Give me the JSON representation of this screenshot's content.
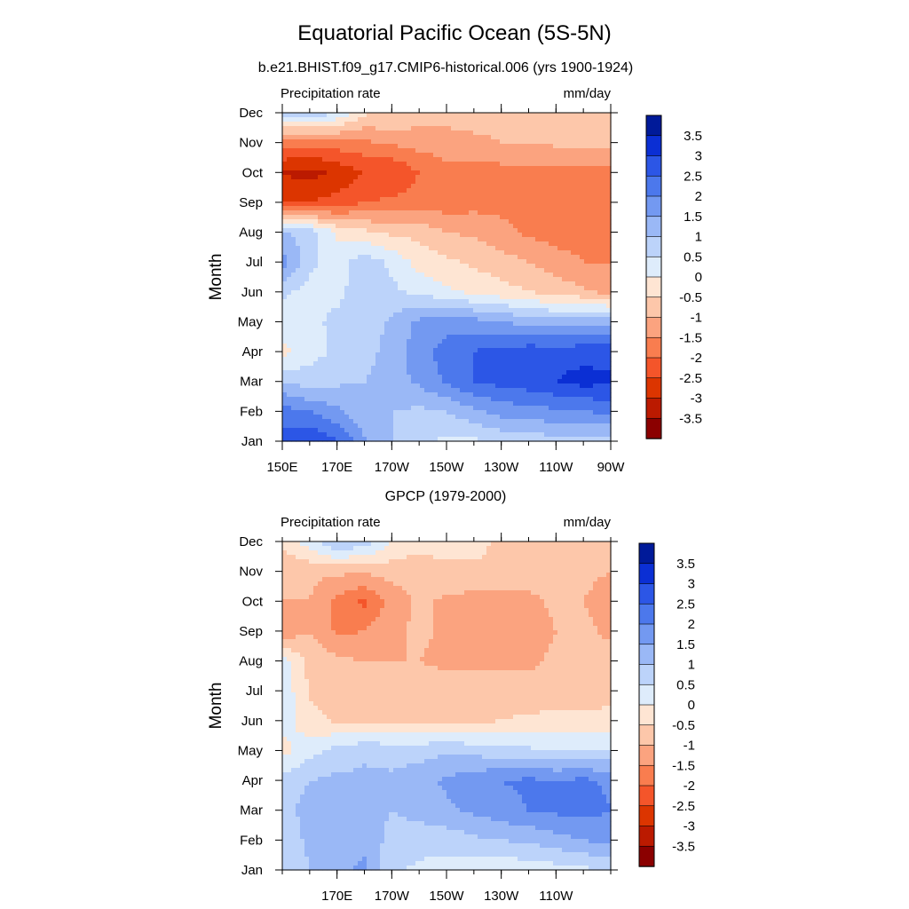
{
  "figure": {
    "title": "Equatorial Pacific Ocean (5S-5N)"
  },
  "colorbar": {
    "labels": [
      "3.5",
      "3",
      "2.5",
      "2",
      "1.5",
      "1",
      "0.5",
      "0",
      "-0.5",
      "-1",
      "-1.5",
      "-2",
      "-2.5",
      "-3",
      "-3.5"
    ],
    "colors": [
      "#8b0000",
      "#bb1a00",
      "#dc3500",
      "#f4552a",
      "#f97d4f",
      "#fba37f",
      "#fdc7aa",
      "#fee5d3",
      "#deecfb",
      "#bcd3fa",
      "#9ab8f6",
      "#7399f1",
      "#4c78ec",
      "#2c56e6",
      "#0b2fd4",
      "#001a99"
    ]
  },
  "chart_data": [
    {
      "type": "heatmap",
      "title": "b.e21.BHIST.f09_g17.CMIP6-historical.006 (yrs 1900-1924)",
      "left_label": "Precipitation rate",
      "right_label": "mm/day",
      "ylabel": "Month",
      "xlabel": "",
      "x_values": [
        150,
        160,
        170,
        180,
        190,
        200,
        210,
        220,
        230,
        240,
        250,
        260,
        270
      ],
      "x_tick_values": [
        150,
        170,
        190,
        210,
        230,
        250,
        270
      ],
      "x_tick_labels": [
        "150E",
        "170E",
        "170W",
        "150W",
        "130W",
        "110W",
        "90W"
      ],
      "xlim": [
        150,
        270
      ],
      "y_tick_labels": [
        "Jan",
        "Feb",
        "Mar",
        "Apr",
        "May",
        "Jun",
        "Jul",
        "Aug",
        "Sep",
        "Oct",
        "Nov",
        "Dec"
      ],
      "levels": [
        -3.5,
        -3,
        -2.5,
        -2,
        -1.5,
        -1,
        -0.5,
        0,
        0.5,
        1,
        1.5,
        2,
        2.5,
        3,
        3.5
      ],
      "z": [
        [
          2.7,
          3.0,
          2.6,
          1.6,
          1.0,
          0.6,
          0.4,
          0.4,
          0.6,
          0.7,
          0.8,
          0.8,
          0.8
        ],
        [
          2.2,
          2.0,
          1.6,
          1.1,
          1.0,
          0.9,
          1.0,
          1.4,
          1.7,
          1.8,
          1.9,
          2.0,
          2.1
        ],
        [
          1.0,
          0.7,
          0.9,
          1.0,
          1.3,
          1.6,
          2.1,
          2.5,
          2.7,
          2.8,
          3.0,
          3.2,
          3.1
        ],
        [
          -0.2,
          0.3,
          0.6,
          0.8,
          1.2,
          1.8,
          2.2,
          2.5,
          2.7,
          2.8,
          2.8,
          2.8,
          2.8
        ],
        [
          0.3,
          0.4,
          0.6,
          0.7,
          1.1,
          1.6,
          1.8,
          1.7,
          1.5,
          1.3,
          1.2,
          1.3,
          1.3
        ],
        [
          0.6,
          0.3,
          0.4,
          0.7,
          0.6,
          0.4,
          0.1,
          -0.1,
          -0.3,
          -0.5,
          -0.7,
          -0.9,
          -1.2
        ],
        [
          1.8,
          0.6,
          0.3,
          0.8,
          0.4,
          -0.2,
          -0.4,
          -0.6,
          -0.8,
          -1.0,
          -1.3,
          -1.5,
          -1.5
        ],
        [
          1.0,
          0.8,
          -0.1,
          -0.4,
          -0.6,
          -0.7,
          -1.0,
          -1.1,
          -1.3,
          -1.6,
          -1.7,
          -1.7,
          -1.7
        ],
        [
          -2.6,
          -2.5,
          -2.3,
          -2.0,
          -1.9,
          -1.8,
          -1.8,
          -1.7,
          -1.7,
          -1.7,
          -1.7,
          -1.7,
          -1.7
        ],
        [
          -3.0,
          -3.2,
          -2.9,
          -2.5,
          -2.5,
          -2.0,
          -1.7,
          -1.7,
          -1.7,
          -1.7,
          -1.7,
          -1.7,
          -1.6
        ],
        [
          -1.8,
          -1.8,
          -1.7,
          -1.6,
          -1.4,
          -1.3,
          -1.2,
          -1.1,
          -1.0,
          -1.0,
          -0.9,
          -0.9,
          -0.9
        ],
        [
          0.7,
          0.9,
          0.5,
          -0.4,
          -0.5,
          -0.7,
          -0.8,
          -0.8,
          -0.8,
          -0.7,
          -0.7,
          -0.6,
          -0.6
        ]
      ]
    },
    {
      "type": "heatmap",
      "title": "GPCP (1979-2000)",
      "left_label": "Precipitation rate",
      "right_label": "mm/day",
      "ylabel": "Month",
      "xlabel": "",
      "x_values": [
        150,
        160,
        170,
        180,
        190,
        200,
        210,
        220,
        230,
        240,
        250,
        260,
        270
      ],
      "x_tick_values": [
        170,
        190,
        210,
        230,
        250
      ],
      "x_tick_labels": [
        "170E",
        "170W",
        "150W",
        "130W",
        "110W"
      ],
      "xlim": [
        150,
        270
      ],
      "y_tick_labels": [
        "Jan",
        "Feb",
        "Mar",
        "Apr",
        "May",
        "Jun",
        "Jul",
        "Aug",
        "Sep",
        "Oct",
        "Nov",
        "Dec"
      ],
      "levels": [
        -3.5,
        -3,
        -2.5,
        -2,
        -1.5,
        -1,
        -0.5,
        0,
        0.5,
        1,
        1.5,
        2,
        2.5,
        3,
        3.5
      ],
      "z": [
        [
          0.6,
          1.0,
          1.4,
          1.6,
          0.6,
          0.4,
          0.3,
          0.2,
          0.1,
          0.2,
          0.3,
          0.4,
          0.5
        ],
        [
          0.7,
          1.1,
          1.3,
          1.4,
          0.8,
          0.7,
          0.7,
          0.9,
          1.0,
          1.1,
          1.3,
          1.5,
          1.7
        ],
        [
          0.8,
          1.2,
          1.4,
          1.3,
          1.0,
          1.2,
          1.4,
          1.6,
          1.8,
          2.0,
          2.1,
          2.2,
          2.0
        ],
        [
          0.7,
          1.0,
          1.1,
          1.1,
          1.1,
          1.3,
          1.6,
          1.8,
          2.0,
          2.1,
          2.0,
          2.1,
          1.9
        ],
        [
          -0.2,
          0.3,
          0.7,
          0.9,
          0.8,
          0.8,
          0.9,
          0.8,
          0.7,
          0.6,
          0.5,
          0.5,
          0.5
        ],
        [
          0.3,
          -0.3,
          -0.6,
          -0.6,
          -0.6,
          -0.6,
          -0.6,
          -0.6,
          -0.5,
          -0.4,
          -0.4,
          -0.4,
          -0.4
        ],
        [
          0.4,
          -0.6,
          -0.7,
          -0.8,
          -0.8,
          -0.8,
          -0.8,
          -0.8,
          -0.8,
          -0.8,
          -0.7,
          -0.7,
          -0.6
        ],
        [
          0.2,
          -0.6,
          -0.9,
          -1.0,
          -1.0,
          -1.0,
          -1.1,
          -1.1,
          -1.1,
          -1.1,
          -0.9,
          -0.8,
          -0.8
        ],
        [
          -1.4,
          -1.0,
          -1.6,
          -1.5,
          -1.1,
          -0.9,
          -1.1,
          -1.3,
          -1.3,
          -1.3,
          -1.0,
          -0.9,
          -1.1
        ],
        [
          -1.0,
          -1.0,
          -1.6,
          -2.1,
          -1.3,
          -0.9,
          -1.1,
          -1.2,
          -1.2,
          -1.1,
          -0.9,
          -1.0,
          -1.2
        ],
        [
          -1.0,
          -0.9,
          -0.9,
          -0.9,
          -0.8,
          -0.8,
          -0.6,
          -0.6,
          -0.7,
          -0.8,
          -0.9,
          -0.9,
          -1.0
        ],
        [
          -0.3,
          0.3,
          1.1,
          0.8,
          0.0,
          -0.3,
          -0.3,
          -0.3,
          -0.6,
          -0.7,
          -0.8,
          -0.8,
          -0.8
        ]
      ]
    }
  ]
}
